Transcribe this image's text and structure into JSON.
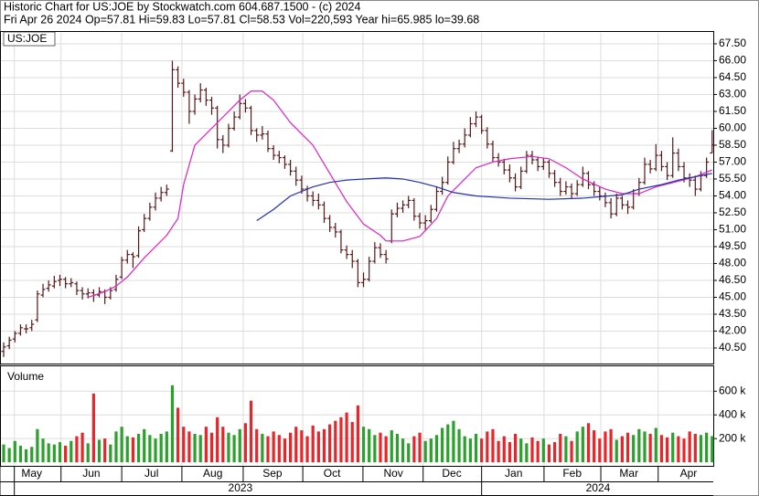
{
  "chart_data": {
    "type": "ohlc",
    "title": "Historic Chart for US:JOE by Stockwatch.com 604.687.1500 - (c) 2024",
    "subtitle": "Fri Apr 26 2024  Op=57.81  Hi=59.83  Lo=57.81  Cl=58.53  Vol=220,593  Year hi=65.985  lo=39.68",
    "symbol": "US:JOE",
    "volume_label": "Volume",
    "up_color": "#2ca02c",
    "down_color": "#e8262a",
    "bar_color": "#5a1616",
    "grid": true,
    "xlim": [
      -0.65,
      126.2
    ],
    "ylim": [
      39.12,
      68.47
    ],
    "yticks": [
      {
        "value": 40.5,
        "label": "40.50"
      },
      {
        "value": 42,
        "label": "42.00"
      },
      {
        "value": 43.5,
        "label": "43.50"
      },
      {
        "value": 45,
        "label": "45.00"
      },
      {
        "value": 46.5,
        "label": "46.50"
      },
      {
        "value": 48,
        "label": "48.00"
      },
      {
        "value": 49.5,
        "label": "49.50"
      },
      {
        "value": 51,
        "label": "51.00"
      },
      {
        "value": 52.5,
        "label": "52.50"
      },
      {
        "value": 54,
        "label": "54.00"
      },
      {
        "value": 55.5,
        "label": "55.50"
      },
      {
        "value": 57,
        "label": "57.00"
      },
      {
        "value": 58.5,
        "label": "58.50"
      },
      {
        "value": 60,
        "label": "60.00"
      },
      {
        "value": 61.5,
        "label": "61.50"
      },
      {
        "value": 63,
        "label": "63.00"
      },
      {
        "value": 64.5,
        "label": "64.50"
      },
      {
        "value": 66,
        "label": "66.00"
      },
      {
        "value": 67.5,
        "label": "67.50"
      }
    ],
    "xticks": [
      {
        "value": 5,
        "label": "May"
      },
      {
        "value": 15.6,
        "label": "Jun"
      },
      {
        "value": 26.3,
        "label": "Jul"
      },
      {
        "value": 37.2,
        "label": "Aug"
      },
      {
        "value": 47.8,
        "label": "Sep"
      },
      {
        "value": 58.4,
        "label": "Oct"
      },
      {
        "value": 69.3,
        "label": "Nov"
      },
      {
        "value": 79.7,
        "label": "Dec"
      },
      {
        "value": 90.7,
        "label": "Jan"
      },
      {
        "value": 101.1,
        "label": "Feb"
      },
      {
        "value": 111.2,
        "label": "Mar"
      },
      {
        "value": 121.8,
        "label": "Apr"
      }
    ],
    "xgrid": [
      1.9,
      10.2,
      21,
      31.7,
      42.6,
      53.2,
      63.9,
      74.6,
      85,
      96.1,
      106.2,
      116.4
    ],
    "years": [
      {
        "value": 42.1,
        "label": "2023"
      },
      {
        "value": 105.7,
        "label": "2024"
      }
    ],
    "year_bounds": [
      1.9,
      85
    ],
    "ohlc": [
      [
        40.2,
        41.0,
        39.7,
        40.6
      ],
      [
        40.7,
        41.5,
        40.4,
        41.2
      ],
      [
        41.3,
        42.0,
        41.0,
        41.8
      ],
      [
        41.8,
        42.6,
        41.6,
        42.3
      ],
      [
        42.2,
        42.6,
        41.8,
        42.2
      ],
      [
        42.3,
        43.0,
        42.0,
        42.6
      ],
      [
        43.0,
        45.6,
        42.8,
        45.3
      ],
      [
        45.2,
        46.2,
        45.0,
        45.7
      ],
      [
        45.8,
        46.5,
        45.5,
        46.1
      ],
      [
        46.0,
        46.9,
        45.8,
        46.4
      ],
      [
        46.5,
        47.0,
        46.0,
        46.6
      ],
      [
        46.6,
        46.8,
        45.8,
        46.2
      ],
      [
        46.2,
        46.7,
        45.9,
        46.3
      ],
      [
        46.2,
        46.4,
        45.2,
        45.6
      ],
      [
        45.6,
        45.9,
        44.8,
        45.3
      ],
      [
        45.3,
        45.8,
        44.9,
        45.4
      ],
      [
        45.4,
        45.7,
        44.6,
        45.2
      ],
      [
        45.2,
        45.9,
        45.0,
        45.5
      ],
      [
        45.5,
        45.7,
        44.4,
        45.0
      ],
      [
        45.0,
        45.9,
        44.8,
        45.6
      ],
      [
        45.7,
        47.0,
        45.5,
        46.6
      ],
      [
        46.8,
        48.6,
        46.6,
        48.3
      ],
      [
        48.3,
        49.2,
        48.0,
        48.8
      ],
      [
        48.8,
        49.0,
        47.6,
        48.6
      ],
      [
        48.7,
        51.3,
        48.5,
        50.9
      ],
      [
        51.0,
        52.4,
        50.8,
        52.0
      ],
      [
        52.0,
        53.4,
        51.8,
        53.0
      ],
      [
        53.0,
        54.3,
        52.7,
        53.8
      ],
      [
        53.8,
        54.8,
        53.5,
        54.3
      ],
      [
        54.3,
        55.0,
        54.0,
        54.6
      ],
      [
        58.0,
        66.0,
        57.9,
        65.2
      ],
      [
        65.2,
        65.5,
        63.6,
        64.0
      ],
      [
        64.0,
        64.4,
        62.8,
        63.2
      ],
      [
        63.2,
        63.4,
        60.4,
        61.5
      ],
      [
        61.5,
        63.0,
        61.2,
        62.6
      ],
      [
        62.6,
        64.0,
        62.3,
        63.4
      ],
      [
        63.4,
        63.6,
        62.0,
        62.5
      ],
      [
        62.5,
        62.8,
        61.2,
        61.8
      ],
      [
        61.8,
        62.0,
        58.2,
        59.0
      ],
      [
        59.0,
        59.4,
        57.8,
        58.5
      ],
      [
        58.5,
        60.4,
        58.3,
        60.0
      ],
      [
        60.0,
        61.5,
        59.8,
        61.0
      ],
      [
        61.0,
        63.0,
        60.8,
        62.2
      ],
      [
        62.2,
        62.6,
        61.4,
        61.8
      ],
      [
        61.8,
        62.0,
        59.4,
        59.8
      ],
      [
        59.8,
        60.0,
        58.8,
        59.4
      ],
      [
        59.4,
        60.2,
        59.0,
        59.5
      ],
      [
        59.5,
        59.8,
        57.9,
        58.2
      ],
      [
        58.2,
        58.5,
        57.2,
        57.6
      ],
      [
        57.6,
        58.0,
        56.9,
        57.4
      ],
      [
        57.4,
        57.6,
        56.4,
        56.8
      ],
      [
        56.8,
        57.2,
        55.8,
        56.2
      ],
      [
        56.2,
        56.6,
        54.9,
        55.4
      ],
      [
        55.4,
        55.8,
        54.2,
        54.6
      ],
      [
        54.6,
        54.9,
        53.5,
        54.0
      ],
      [
        54.0,
        54.4,
        53.1,
        53.6
      ],
      [
        53.6,
        54.2,
        52.8,
        53.2
      ],
      [
        53.2,
        53.5,
        51.6,
        52.0
      ],
      [
        52.0,
        52.3,
        50.8,
        51.2
      ],
      [
        51.2,
        51.6,
        50.3,
        50.8
      ],
      [
        50.8,
        51.0,
        48.9,
        49.2
      ],
      [
        49.2,
        49.6,
        48.4,
        48.8
      ],
      [
        48.8,
        49.2,
        47.6,
        48.2
      ],
      [
        48.2,
        48.4,
        45.9,
        46.3
      ],
      [
        46.3,
        47.2,
        45.9,
        46.6
      ],
      [
        46.6,
        48.6,
        46.4,
        48.2
      ],
      [
        48.2,
        49.9,
        48.0,
        49.4
      ],
      [
        49.4,
        49.8,
        48.5,
        48.8
      ],
      [
        48.8,
        49.2,
        48.0,
        48.4
      ],
      [
        50.0,
        52.8,
        49.8,
        52.4
      ],
      [
        52.4,
        53.4,
        52.1,
        52.9
      ],
      [
        52.9,
        53.6,
        52.5,
        53.2
      ],
      [
        53.2,
        54.0,
        52.9,
        53.6
      ],
      [
        53.6,
        53.8,
        51.8,
        52.2
      ],
      [
        52.2,
        52.5,
        51.1,
        51.6
      ],
      [
        51.6,
        52.3,
        51.0,
        51.8
      ],
      [
        51.8,
        53.2,
        51.6,
        52.8
      ],
      [
        52.8,
        54.8,
        52.6,
        54.4
      ],
      [
        54.4,
        55.7,
        54.1,
        55.2
      ],
      [
        55.2,
        57.5,
        55.0,
        57.0
      ],
      [
        57.0,
        58.8,
        56.8,
        58.2
      ],
      [
        58.2,
        59.0,
        57.8,
        58.6
      ],
      [
        58.6,
        60.0,
        58.3,
        59.4
      ],
      [
        59.4,
        61.0,
        59.2,
        60.4
      ],
      [
        60.4,
        61.5,
        60.1,
        61.0
      ],
      [
        61.0,
        61.2,
        59.5,
        59.8
      ],
      [
        59.8,
        60.1,
        58.2,
        58.6
      ],
      [
        58.6,
        58.9,
        57.0,
        57.4
      ],
      [
        57.4,
        57.8,
        56.6,
        57.0
      ],
      [
        57.0,
        57.3,
        55.9,
        56.3
      ],
      [
        56.3,
        56.8,
        55.2,
        55.6
      ],
      [
        55.6,
        56.0,
        54.4,
        54.8
      ],
      [
        54.8,
        56.6,
        54.6,
        56.2
      ],
      [
        56.2,
        58.0,
        56.0,
        57.6
      ],
      [
        57.6,
        58.0,
        56.8,
        57.2
      ],
      [
        57.2,
        57.5,
        56.2,
        56.6
      ],
      [
        56.6,
        57.4,
        56.3,
        57.0
      ],
      [
        57.0,
        57.2,
        55.6,
        56.0
      ],
      [
        56.0,
        56.3,
        54.8,
        55.2
      ],
      [
        55.2,
        55.6,
        54.0,
        54.4
      ],
      [
        54.4,
        55.3,
        54.1,
        54.8
      ],
      [
        54.8,
        55.1,
        53.8,
        54.2
      ],
      [
        54.2,
        55.4,
        54.0,
        55.0
      ],
      [
        55.0,
        56.6,
        54.8,
        56.0
      ],
      [
        56.0,
        56.2,
        54.6,
        55.0
      ],
      [
        55.0,
        55.3,
        54.0,
        54.4
      ],
      [
        54.4,
        54.8,
        53.6,
        54.0
      ],
      [
        54.0,
        54.3,
        53.0,
        53.4
      ],
      [
        53.4,
        53.8,
        52.0,
        52.4
      ],
      [
        52.4,
        54.2,
        52.2,
        53.8
      ],
      [
        53.8,
        54.0,
        52.8,
        53.2
      ],
      [
        53.2,
        53.6,
        52.4,
        53.0
      ],
      [
        53.0,
        54.6,
        52.8,
        54.2
      ],
      [
        54.2,
        55.6,
        54.0,
        55.2
      ],
      [
        55.2,
        57.4,
        55.0,
        56.8
      ],
      [
        56.8,
        57.2,
        56.0,
        56.4
      ],
      [
        56.4,
        58.6,
        56.2,
        57.6
      ],
      [
        57.6,
        58.0,
        56.2,
        56.6
      ],
      [
        56.6,
        57.0,
        55.4,
        55.8
      ],
      [
        55.8,
        59.2,
        55.6,
        57.8
      ],
      [
        57.8,
        58.2,
        56.2,
        56.6
      ],
      [
        56.6,
        57.0,
        55.2,
        55.6
      ],
      [
        55.6,
        56.0,
        54.8,
        55.4
      ],
      [
        55.4,
        55.8,
        54.0,
        54.6
      ],
      [
        54.6,
        56.2,
        54.4,
        55.8
      ],
      [
        55.8,
        57.4,
        55.6,
        57.0
      ],
      [
        57.81,
        59.83,
        57.81,
        58.53
      ]
    ],
    "volume": [
      150,
      120,
      180,
      140,
      110,
      130,
      280,
      200,
      160,
      150,
      170,
      140,
      180,
      220,
      250,
      160,
      580,
      190,
      200,
      150,
      260,
      300,
      220,
      210,
      240,
      280,
      230,
      200,
      240,
      260,
      650,
      460,
      300,
      260,
      240,
      230,
      300,
      250,
      380,
      300,
      250,
      230,
      280,
      330,
      520,
      280,
      240,
      220,
      260,
      230,
      200,
      250,
      300,
      270,
      220,
      310,
      260,
      280,
      320,
      350,
      380,
      420,
      340,
      480,
      300,
      280,
      230,
      250,
      220,
      270,
      240,
      200,
      160,
      220,
      250,
      180,
      200,
      230,
      290,
      320,
      350,
      280,
      220,
      200,
      240,
      200,
      260,
      280,
      180,
      220,
      170,
      240,
      200,
      160,
      210,
      180,
      200,
      150,
      170,
      240,
      220,
      180,
      260,
      300,
      330,
      270,
      200,
      260,
      280,
      190,
      220,
      250,
      230,
      280,
      260,
      240,
      290,
      230,
      210,
      250,
      220,
      200,
      260,
      240,
      230,
      250,
      221
    ],
    "vol_ylim": [
      -30,
      810
    ],
    "vol_yticks": [
      {
        "value": 200,
        "label": "200 k"
      },
      {
        "value": 400,
        "label": "400 k"
      },
      {
        "value": 600,
        "label": "600 k"
      }
    ],
    "series": [
      {
        "color": "#e020c8",
        "x": [
          15,
          18,
          20,
          22,
          25,
          29,
          31,
          32,
          34,
          37,
          39,
          42,
          44,
          46,
          48,
          51,
          55,
          58,
          61,
          64,
          67,
          68,
          71,
          74,
          77,
          79,
          82,
          84,
          87,
          90,
          94,
          97,
          100,
          103,
          107,
          110,
          113,
          116,
          120,
          123,
          126
        ],
        "values": [
          45.0,
          45.5,
          46.0,
          46.8,
          48.5,
          50.5,
          52.0,
          55.0,
          58.5,
          60.0,
          61.0,
          62.5,
          63.3,
          63.3,
          62.5,
          60.5,
          58.5,
          56.0,
          53.5,
          51.5,
          50.5,
          50.0,
          50.0,
          50.4,
          52.0,
          54.0,
          55.5,
          56.5,
          57.0,
          57.3,
          57.5,
          57.3,
          56.5,
          55.5,
          54.6,
          54.2,
          54.2,
          54.8,
          55.3,
          55.7,
          56.3
        ]
      },
      {
        "color": "#2030b0",
        "x": [
          45,
          48,
          51,
          55,
          58,
          61,
          64,
          68,
          71,
          74,
          77,
          80,
          84,
          87,
          90,
          97,
          103,
          110,
          113,
          117,
          120,
          123,
          126
        ],
        "values": [
          51.8,
          52.8,
          54.0,
          54.8,
          55.2,
          55.4,
          55.5,
          55.6,
          55.5,
          55.2,
          54.8,
          54.3,
          54.0,
          53.9,
          53.8,
          53.7,
          53.8,
          54.1,
          54.6,
          55.0,
          55.4,
          55.7,
          56.0
        ]
      }
    ]
  }
}
